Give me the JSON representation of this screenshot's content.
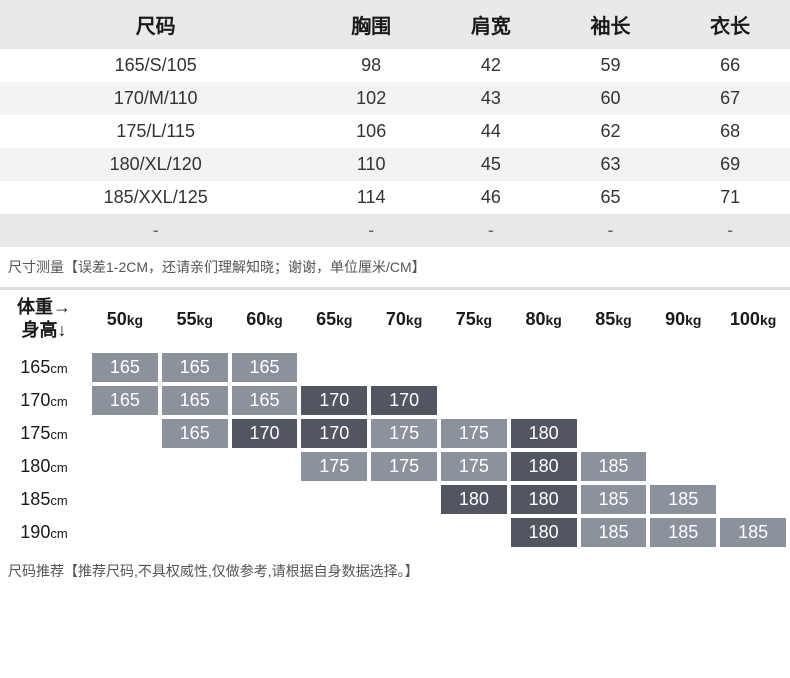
{
  "size_table": {
    "columns": [
      "尺码",
      "胸围",
      "肩宽",
      "袖长",
      "衣长"
    ],
    "rows": [
      [
        "165/S/105",
        "98",
        "42",
        "59",
        "66"
      ],
      [
        "170/M/110",
        "102",
        "43",
        "60",
        "67"
      ],
      [
        "175/L/115",
        "106",
        "44",
        "62",
        "68"
      ],
      [
        "180/XL/120",
        "110",
        "45",
        "63",
        "69"
      ],
      [
        "185/XXL/125",
        "114",
        "46",
        "65",
        "71"
      ],
      [
        "-",
        "-",
        "-",
        "-",
        "-"
      ]
    ],
    "header_bg": "#e9e9e9",
    "alt_row_bg": "#f3f3f3",
    "note": "尺寸测量【误差1-2CM，还请亲们理解知晓；谢谢，单位厘米/CM】"
  },
  "reco_table": {
    "corner_line1": "体重→",
    "corner_line2": "身高↓",
    "weights": [
      "50",
      "55",
      "60",
      "65",
      "70",
      "75",
      "80",
      "85",
      "90",
      "100"
    ],
    "weight_unit": "kg",
    "heights": [
      "165",
      "170",
      "175",
      "180",
      "185",
      "190"
    ],
    "height_unit": "cm",
    "cells": [
      [
        "165",
        "165",
        "165",
        "",
        "",
        "",
        "",
        "",
        "",
        ""
      ],
      [
        "165",
        "165",
        "165",
        "170",
        "170",
        "",
        "",
        "",
        "",
        ""
      ],
      [
        "",
        "165",
        "170",
        "170",
        "175",
        "175",
        "180",
        "",
        "",
        ""
      ],
      [
        "",
        "",
        "",
        "175",
        "175",
        "175",
        "180",
        "185",
        "",
        ""
      ],
      [
        "",
        "",
        "",
        "",
        "",
        "180",
        "180",
        "185",
        "185",
        ""
      ],
      [
        "",
        "",
        "",
        "",
        "",
        "",
        "180",
        "185",
        "185",
        "185"
      ]
    ],
    "cell_colors": [
      [
        "#8b929c",
        "#8b929c",
        "#8b929c",
        "",
        "",
        "",
        "",
        "",
        "",
        ""
      ],
      [
        "#8b929c",
        "#8b929c",
        "#8b929c",
        "#525660",
        "#525660",
        "",
        "",
        "",
        "",
        ""
      ],
      [
        "",
        "#8b929c",
        "#525660",
        "#525660",
        "#8b929c",
        "#8b929c",
        "#525660",
        "",
        "",
        ""
      ],
      [
        "",
        "",
        "",
        "#8b929c",
        "#8b929c",
        "#8b929c",
        "#525660",
        "#8b929c",
        "",
        ""
      ],
      [
        "",
        "",
        "",
        "",
        "",
        "#525660",
        "#525660",
        "#8b929c",
        "#8b929c",
        ""
      ],
      [
        "",
        "",
        "",
        "",
        "",
        "",
        "#525660",
        "#8b929c",
        "#8b929c",
        "#8b929c"
      ]
    ],
    "note": "尺码推荐【推荐尺码,不具权威性,仅做参考,请根据自身数据选择。】"
  }
}
